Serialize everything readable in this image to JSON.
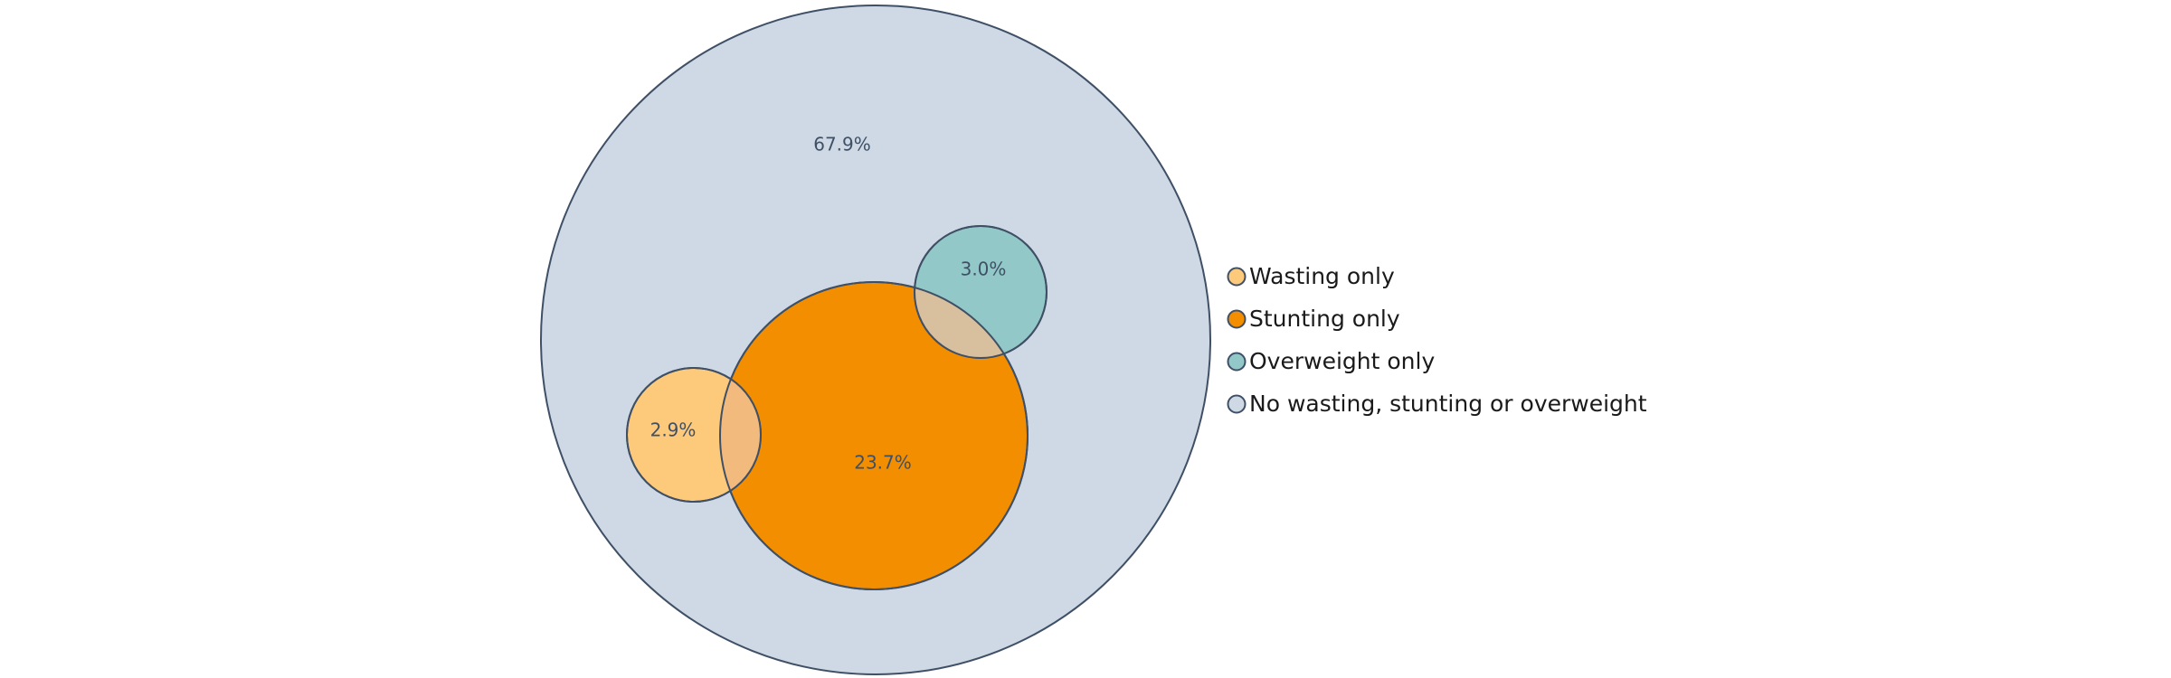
{
  "chart_data": {
    "type": "venn",
    "sets": [
      {
        "id": "none",
        "legend": "No wasting, stunting or overweight",
        "value_label": "67.9%",
        "value": 67.9,
        "color": "#cfd9e5"
      },
      {
        "id": "stunting",
        "legend": "Stunting only",
        "value_label": "23.7%",
        "value": 23.7,
        "color": "#f28e00"
      },
      {
        "id": "overweight",
        "legend": "Overweight only",
        "value_label": "3.0%",
        "value": 3.0,
        "color": "#93c8c8"
      },
      {
        "id": "wasting",
        "legend": "Wasting only",
        "value_label": "2.9%",
        "value": 2.9,
        "color": "#fdc97a"
      }
    ],
    "legend": [
      {
        "label": "Wasting only",
        "color": "#fdc97a"
      },
      {
        "label": "Stunting only",
        "color": "#f28e00"
      },
      {
        "label": "Overweight only",
        "color": "#93c8c8"
      },
      {
        "label": "No wasting, stunting or overweight",
        "color": "#cfd9e5"
      }
    ],
    "legend_placement": "right",
    "overlap_colors": {
      "wasting_stunting": "#f2ba7c",
      "stunting_overweight": "#d8bf9e"
    },
    "outline_color": "#3f5066"
  }
}
